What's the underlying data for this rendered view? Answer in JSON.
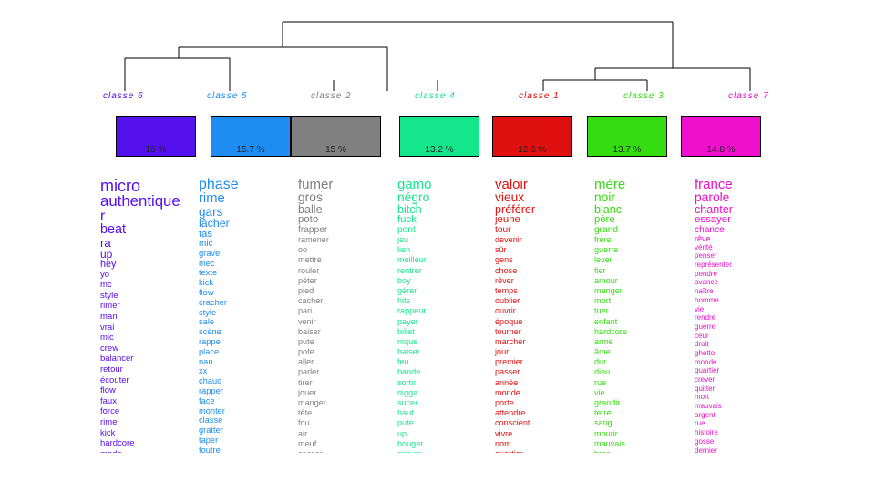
{
  "classes": [
    {
      "id": "c6",
      "label": "classe  6",
      "percent": "15 %",
      "color": "#5510EE",
      "bar": 0.37,
      "words": [
        "micro",
        "authentique",
        "r",
        "beat",
        "ra",
        "up",
        "hey",
        "yo",
        "mc",
        "style",
        "rimer",
        "man",
        "vrai",
        "mic",
        "crew",
        "balancer",
        "retour",
        "écouter",
        "flow",
        "faux",
        "force",
        "rime",
        "kick",
        "hardcore",
        "mode",
        "black"
      ]
    },
    {
      "id": "c5",
      "label": "classe  5",
      "percent": "15.7 %",
      "color": "#1E8CF0",
      "bar": 0.4,
      "words": [
        "phase",
        "rime",
        "gars",
        "lâcher",
        "tas",
        "mic",
        "grave",
        "mec",
        "texte",
        "kick",
        "flow",
        "cracher",
        "style",
        "sale",
        "scène",
        "rappe",
        "place",
        "nan",
        "xx",
        "chaud",
        "rapper",
        "face",
        "monter",
        "classe",
        "gratter",
        "taper",
        "foutre",
        "truc"
      ]
    },
    {
      "id": "c2",
      "label": "classe  2",
      "percent": "15 %",
      "color": "#808080",
      "bar": 0.32,
      "words": [
        "fumer",
        "gros",
        "balle",
        "poto",
        "frapper",
        "ramener",
        "oo",
        "mettre",
        "rouler",
        "péter",
        "pied",
        "cacher",
        "pari",
        "venir",
        "baiser",
        "pute",
        "pote",
        "aller",
        "parler",
        "tirer",
        "jouer",
        "manger",
        "tête",
        "fou",
        "air",
        "meuf",
        "casser"
      ]
    },
    {
      "id": "c4",
      "label": "classe  4",
      "percent": "13.2 %",
      "color": "#14E68C",
      "bar": 0.57,
      "words": [
        "gamo",
        "négro",
        "bitch",
        "fuck",
        "pont",
        "jeu",
        "lien",
        "meilleur",
        "rentrer",
        "boy",
        "gérer",
        "hits",
        "rappeur",
        "payer",
        "billet",
        "nique",
        "baiser",
        "feu",
        "bande",
        "sortir",
        "nigga",
        "sucer",
        "haut",
        "pute",
        "up",
        "bouger",
        "arriver"
      ]
    },
    {
      "id": "c1",
      "label": "classe  1",
      "percent": "12.6 %",
      "color": "#E01010",
      "bar": 0.6,
      "words": [
        "valoir",
        "vieux",
        "préférer",
        "jeune",
        "tour",
        "devenir",
        "sûr",
        "gens",
        "chose",
        "rêver",
        "temps",
        "oublier",
        "ouvrir",
        "époque",
        "tourner",
        "marcher",
        "jour",
        "premier",
        "passer",
        "année",
        "monde",
        "porte",
        "attendre",
        "conscient",
        "vivre",
        "nom",
        "quartier"
      ]
    },
    {
      "id": "c3",
      "label": "classe  3",
      "percent": "13.7 %",
      "color": "#33DD11",
      "bar": 0.5,
      "words": [
        "mère",
        "noir",
        "blanc",
        "père",
        "grand",
        "frère",
        "guerre",
        "lever",
        "fier",
        "amour",
        "manger",
        "mort",
        "tuer",
        "enfant",
        "hardcore",
        "arme",
        "âme",
        "dur",
        "dieu",
        "rue",
        "vie",
        "grandir",
        "terre",
        "sang",
        "mourir",
        "mauvais",
        "bras"
      ]
    },
    {
      "id": "c7",
      "label": "classe  7",
      "percent": "14.8 %",
      "color": "#EE10CC",
      "bar": 0.42,
      "words": [
        "france",
        "parole",
        "chanter",
        "essayer",
        "chance",
        "rêve",
        "vérité",
        "penser",
        "représenter",
        "pendre",
        "avance",
        "naître",
        "homme",
        "vie",
        "rendre",
        "guerre",
        "ceur",
        "droit",
        "ghetto",
        "monde",
        "quartier",
        "crever",
        "quitter",
        "mort",
        "mauvais",
        "argent",
        "rue",
        "histoire",
        "gosse",
        "dernier",
        "changer"
      ]
    }
  ]
}
